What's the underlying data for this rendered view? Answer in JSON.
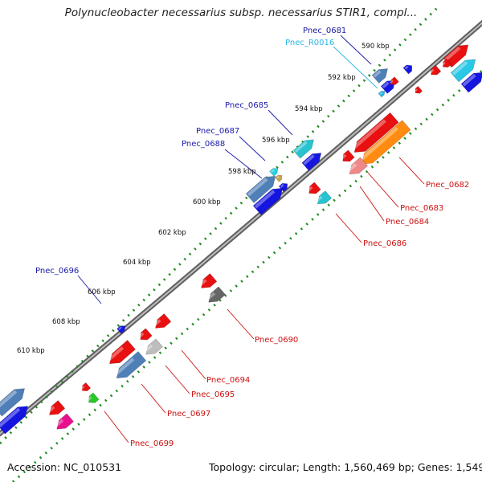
{
  "title": "Polynucleobacter necessarius subsp. necessarius STIR1, compl...",
  "footer": {
    "accession": "Accession: NC_010531",
    "summary": "Topology: circular; Length: 1,560,469 bp; Genes: 1,549"
  },
  "colors": {
    "backbone": "#7c7c7c",
    "tick": "#1f8a1f",
    "label_top": "#1a1aa6",
    "label_top_rna": "#29b6e6",
    "label_bottom": "#cc1111"
  },
  "ruler_labels": [
    "590 kbp",
    "592 kbp",
    "594 kbp",
    "596 kbp",
    "598 kbp",
    "600 kbp",
    "602 kbp",
    "604 kbp",
    "606 kbp",
    "608 kbp",
    "610 kbp"
  ],
  "gene_labels_top": [
    "Pnec_0681",
    "Pnec_R0016",
    "Pnec_0685",
    "Pnec_0687",
    "Pnec_0688",
    "Pnec_0696"
  ],
  "gene_labels_bottom": [
    "Pnec_0682",
    "Pnec_0683",
    "Pnec_0684",
    "Pnec_0686",
    "Pnec_0690",
    "Pnec_0694",
    "Pnec_0695",
    "Pnec_0697",
    "Pnec_0699"
  ]
}
